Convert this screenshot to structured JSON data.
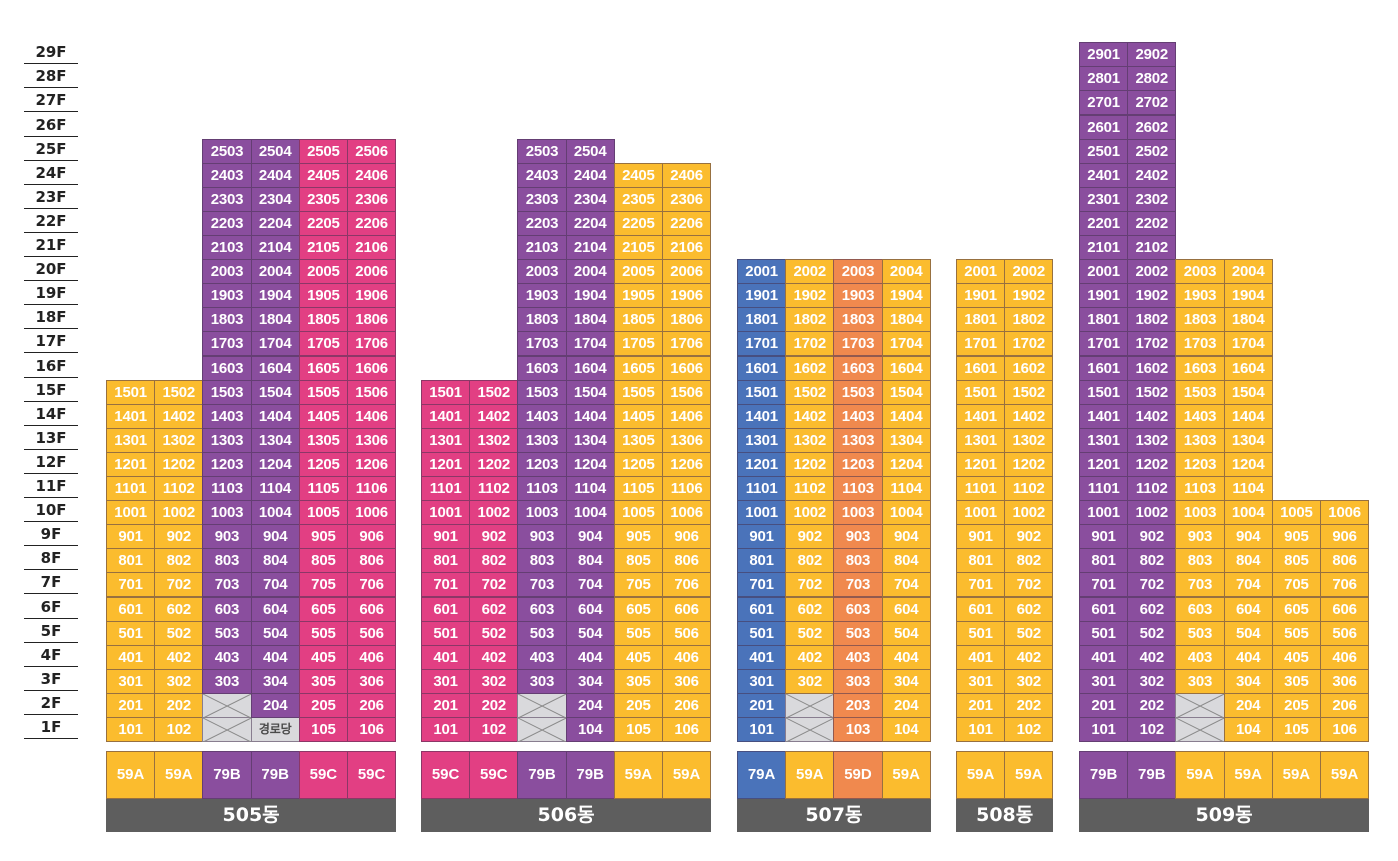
{
  "floor_labels": [
    "29F",
    "28F",
    "27F",
    "26F",
    "25F",
    "24F",
    "23F",
    "22F",
    "21F",
    "20F",
    "19F",
    "18F",
    "17F",
    "16F",
    "15F",
    "14F",
    "13F",
    "12F",
    "11F",
    "10F",
    "9F",
    "8F",
    "7F",
    "6F",
    "5F",
    "4F",
    "3F",
    "2F",
    "1F"
  ],
  "colors": {
    "Y": "#fbbc2e",
    "P": "#8a4e9e",
    "M": "#e23f83",
    "B": "#4a73ba",
    "O": "#f0894e"
  },
  "community_label": "경로당",
  "buildings": [
    {
      "name": "505동",
      "columns": [
        {
          "line": "01",
          "type": "59A",
          "color": "Y",
          "top": 15,
          "exclude": []
        },
        {
          "line": "02",
          "type": "59A",
          "color": "Y",
          "top": 15,
          "exclude": []
        },
        {
          "line": "03",
          "type": "79B",
          "color": "P",
          "top": 25,
          "exclude": [
            1,
            2
          ]
        },
        {
          "line": "04",
          "type": "79B",
          "color": "P",
          "top": 25,
          "exclude": [],
          "community_floor": 1
        },
        {
          "line": "05",
          "type": "59C",
          "color": "M",
          "top": 25,
          "exclude": []
        },
        {
          "line": "06",
          "type": "59C",
          "color": "M",
          "top": 25,
          "exclude": []
        }
      ]
    },
    {
      "name": "506동",
      "columns": [
        {
          "line": "01",
          "type": "59C",
          "color": "M",
          "top": 15,
          "exclude": []
        },
        {
          "line": "02",
          "type": "59C",
          "color": "M",
          "top": 15,
          "exclude": []
        },
        {
          "line": "03",
          "type": "79B",
          "color": "P",
          "top": 25,
          "exclude": [
            1,
            2
          ]
        },
        {
          "line": "04",
          "type": "79B",
          "color": "P",
          "top": 25,
          "exclude": []
        },
        {
          "line": "05",
          "type": "59A",
          "color": "Y",
          "top": 24,
          "exclude": []
        },
        {
          "line": "06",
          "type": "59A",
          "color": "Y",
          "top": 24,
          "exclude": []
        }
      ]
    },
    {
      "name": "507동",
      "columns": [
        {
          "line": "01",
          "type": "79A",
          "color": "B",
          "top": 20,
          "exclude": []
        },
        {
          "line": "02",
          "type": "59A",
          "color": "Y",
          "top": 20,
          "exclude": [
            1,
            2
          ]
        },
        {
          "line": "03",
          "type": "59D",
          "color": "O",
          "top": 20,
          "exclude": []
        },
        {
          "line": "04",
          "type": "59A",
          "color": "Y",
          "top": 20,
          "exclude": []
        }
      ]
    },
    {
      "name": "508동",
      "columns": [
        {
          "line": "01",
          "type": "59A",
          "color": "Y",
          "top": 20,
          "exclude": []
        },
        {
          "line": "02",
          "type": "59A",
          "color": "Y",
          "top": 20,
          "exclude": []
        }
      ]
    },
    {
      "name": "509동",
      "columns": [
        {
          "line": "01",
          "type": "79B",
          "color": "P",
          "top": 29,
          "exclude": []
        },
        {
          "line": "02",
          "type": "79B",
          "color": "P",
          "top": 29,
          "exclude": []
        },
        {
          "line": "03",
          "type": "59A",
          "color": "Y",
          "top": 20,
          "exclude": [
            1,
            2
          ]
        },
        {
          "line": "04",
          "type": "59A",
          "color": "Y",
          "top": 20,
          "exclude": []
        },
        {
          "line": "05",
          "type": "59A",
          "color": "Y",
          "top": 10,
          "exclude": []
        },
        {
          "line": "06",
          "type": "59A",
          "color": "Y",
          "top": 10,
          "exclude": []
        }
      ]
    }
  ]
}
